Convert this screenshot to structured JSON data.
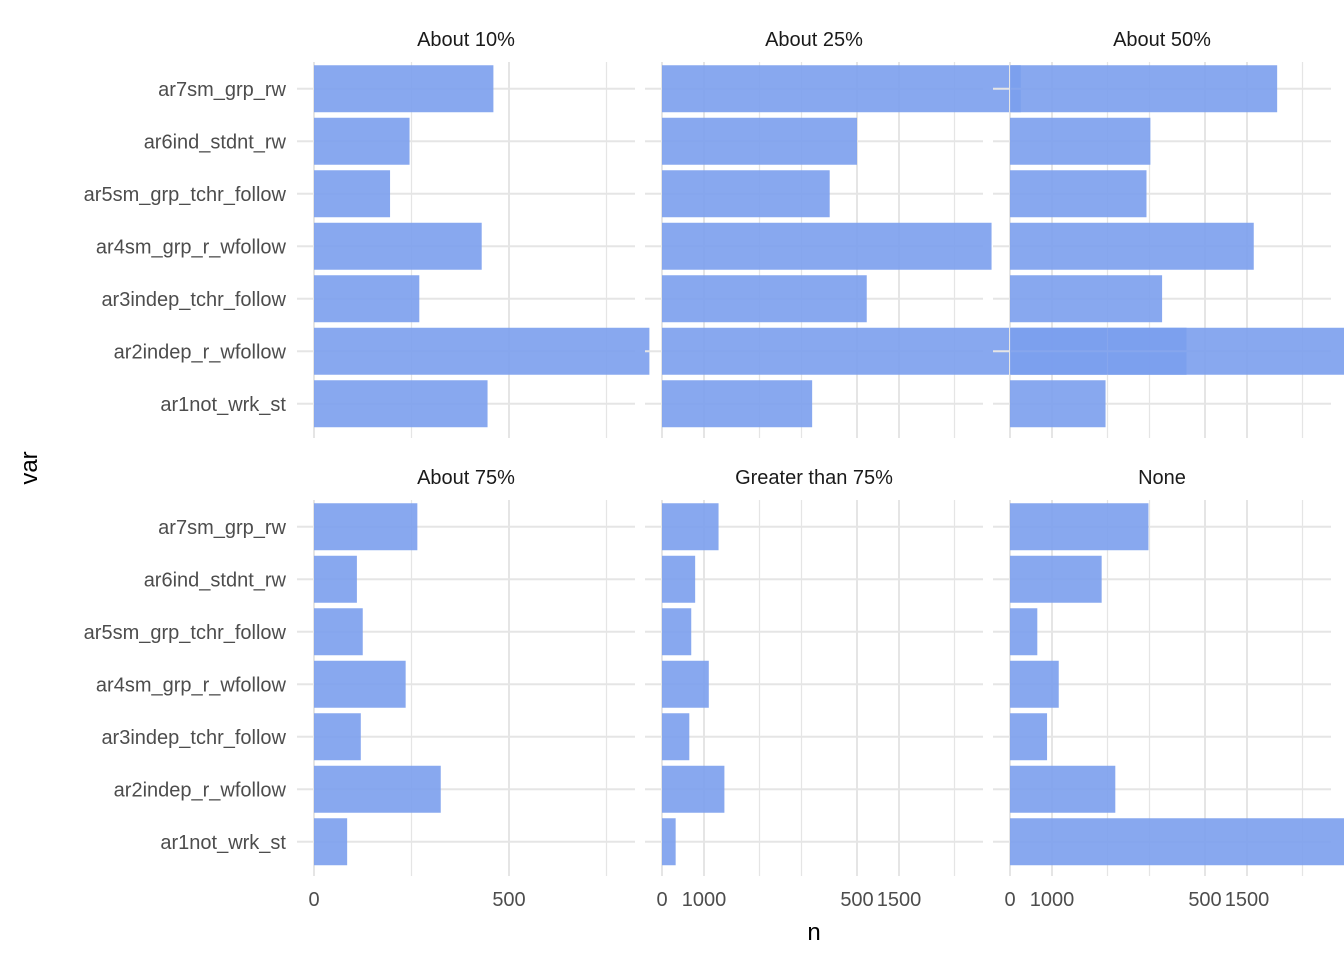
{
  "chart_data": {
    "type": "bar",
    "orientation": "horizontal",
    "facet_layout": "2x3",
    "xlabel": "n",
    "ylabel": "var",
    "xlim": [
      0,
      1600
    ],
    "xticks": [
      "0",
      "500",
      "1000",
      "1500"
    ],
    "grid": true,
    "categories": [
      "ar1not_wrk_st",
      "ar2indep_r_wfollow",
      "ar3indep_tchr_follow",
      "ar4sm_grp_r_wfollow",
      "ar5sm_grp_tchr_follow",
      "ar6ind_stdnt_rw",
      "ar7sm_grp_rw"
    ],
    "colors": {
      "bar": "#7B9FED",
      "grid": "#E5E5E5"
    },
    "facets": [
      {
        "label": "About 10%",
        "values": [
          445,
          860,
          270,
          430,
          195,
          245,
          460
        ]
      },
      {
        "label": "About 25%",
        "values": [
          385,
          1345,
          525,
          845,
          430,
          500,
          920
        ]
      },
      {
        "label": "About 50%",
        "values": [
          245,
          915,
          390,
          625,
          350,
          360,
          685
        ]
      },
      {
        "label": "About 75%",
        "values": [
          85,
          325,
          120,
          235,
          125,
          110,
          265
        ]
      },
      {
        "label": "Greater than 75%",
        "values": [
          35,
          160,
          70,
          120,
          75,
          85,
          145
        ]
      },
      {
        "label": "None",
        "values": [
          1555,
          270,
          95,
          125,
          70,
          235,
          355
        ]
      }
    ]
  }
}
